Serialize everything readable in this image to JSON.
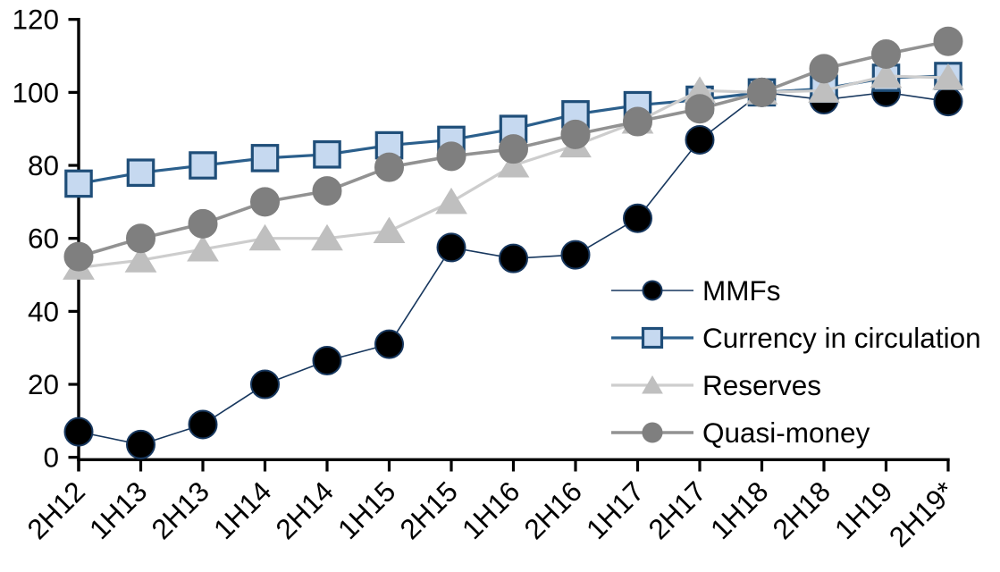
{
  "page": {
    "background_color": "#FFFFFF",
    "text_color": "#000000"
  },
  "chart_data": {
    "type": "line",
    "title": "",
    "xlabel": "",
    "ylabel": "",
    "ylim": [
      0,
      120
    ],
    "yticks": [
      0,
      20,
      40,
      60,
      80,
      100,
      120
    ],
    "grid": false,
    "legend_position": "inside-right",
    "x_label_rotation_deg": 45,
    "categories": [
      "2H12",
      "1H13",
      "2H13",
      "1H14",
      "2H14",
      "1H15",
      "2H15",
      "1H16",
      "2H16",
      "1H17",
      "2H17",
      "1H18",
      "2H18",
      "1H19",
      "2H19*"
    ],
    "series": [
      {
        "name": "MMFs",
        "marker": "circle",
        "line_color": "#17375E",
        "marker_fill": "#000000",
        "marker_edge": "#17375E",
        "line_width": 1.6,
        "values": [
          7,
          3.5,
          9,
          20,
          26.5,
          31,
          57.5,
          54.5,
          55.5,
          65.5,
          87,
          100,
          98,
          100,
          97.5
        ]
      },
      {
        "name": "Currency in circulation",
        "marker": "square",
        "line_color": "#2B5F8C",
        "marker_fill": "#C6D9F0",
        "marker_edge": "#1F4E79",
        "line_width": 3.2,
        "values": [
          75,
          78,
          80,
          82,
          83,
          85.5,
          87,
          90,
          94,
          96.5,
          98,
          100,
          101,
          104,
          104.5
        ]
      },
      {
        "name": "Reserves",
        "marker": "triangle",
        "line_color": "#CDCDCD",
        "marker_fill": "#BFBFBF",
        "marker_edge": "#BFBFBF",
        "line_width": 3.2,
        "values": [
          52,
          54,
          57,
          60,
          60,
          62,
          70,
          80,
          85.5,
          92,
          100.5,
          100,
          100.5,
          104.5,
          104
        ]
      },
      {
        "name": "Quasi-money",
        "marker": "circle",
        "line_color": "#929292",
        "marker_fill": "#7F7F7F",
        "marker_edge": "#7F7F7F",
        "line_width": 3.6,
        "values": [
          55,
          60,
          64,
          70,
          73,
          79.5,
          82.5,
          84.5,
          88.5,
          92,
          95.5,
          100,
          106.5,
          110.5,
          114
        ]
      }
    ]
  }
}
